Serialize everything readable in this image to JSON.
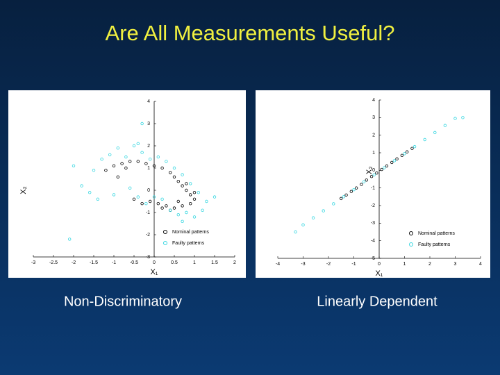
{
  "slide_title": "Are All Measurements Useful?",
  "chart_data": [
    {
      "type": "scatter",
      "caption": "Non-Discriminatory",
      "xlabel": "X₁",
      "ylabel": "X₂",
      "xlim": [
        -3,
        2
      ],
      "xticks": [
        -3,
        -2.5,
        -2,
        -1.5,
        -1,
        -0.5,
        0,
        0.5,
        1,
        1.5,
        2
      ],
      "ylim": [
        -3,
        4
      ],
      "yticks": [
        -3,
        -2,
        -1,
        0,
        1,
        2,
        3,
        4
      ],
      "legend": "lower right",
      "series": [
        {
          "name": "Nominal patterns",
          "color": "#000000",
          "x": [
            -1.2,
            -1.0,
            -0.8,
            -0.6,
            -0.4,
            -0.2,
            0.0,
            0.2,
            0.4,
            0.5,
            0.6,
            0.7,
            0.8,
            0.9,
            1.0,
            0.9,
            0.7,
            0.5,
            0.3,
            0.1,
            -0.1,
            -0.3,
            -0.5,
            0.8,
            1.0,
            0.6,
            -0.9,
            -0.7,
            0.4,
            0.2
          ],
          "values": [
            0.9,
            1.1,
            1.2,
            1.3,
            1.3,
            1.2,
            1.1,
            1.0,
            0.8,
            0.6,
            0.4,
            0.2,
            0.0,
            -0.2,
            -0.4,
            -0.6,
            -0.7,
            -0.8,
            -0.7,
            -0.6,
            -0.5,
            -0.6,
            -0.4,
            0.3,
            -0.1,
            -0.5,
            0.6,
            1.0,
            -0.9,
            -0.8
          ]
        },
        {
          "name": "Faulty patterns",
          "color": "#33d6e0",
          "x": [
            -2.0,
            -1.8,
            -1.5,
            -1.3,
            -1.1,
            -0.9,
            -0.7,
            -0.5,
            -0.3,
            -0.1,
            0.1,
            0.3,
            0.5,
            0.7,
            0.9,
            1.1,
            1.3,
            1.2,
            1.0,
            0.8,
            0.6,
            0.4,
            0.2,
            0.0,
            -0.2,
            -0.4,
            -0.6,
            -1.0,
            -1.4,
            -0.4,
            -0.3,
            -2.1,
            1.5,
            0.7,
            -1.6
          ],
          "values": [
            1.1,
            0.2,
            0.9,
            1.4,
            1.6,
            1.9,
            1.5,
            2.0,
            1.7,
            1.4,
            1.5,
            1.3,
            1.0,
            0.7,
            0.3,
            -0.1,
            -0.5,
            -0.9,
            -1.2,
            -1.0,
            -1.1,
            -0.9,
            -0.4,
            -0.3,
            -0.6,
            -0.3,
            0.1,
            -0.2,
            -0.4,
            2.1,
            3.0,
            -2.2,
            -0.3,
            -1.4,
            -0.1
          ]
        }
      ]
    },
    {
      "type": "scatter",
      "caption": "Linearly Dependent",
      "xlabel": "X₁",
      "ylabel": "X₂",
      "xlim": [
        -4,
        4
      ],
      "xticks": [
        -4,
        -3,
        -2,
        -1,
        0,
        1,
        2,
        3,
        4
      ],
      "ylim": [
        -5,
        4
      ],
      "yticks": [
        -5,
        -4,
        -3,
        -2,
        -1,
        0,
        1,
        2,
        3,
        4
      ],
      "legend": "lower right",
      "series": [
        {
          "name": "Nominal patterns",
          "color": "#000000",
          "x": [
            -1.5,
            -1.3,
            -1.1,
            -0.9,
            -0.7,
            -0.5,
            -0.3,
            -0.1,
            0.1,
            0.3,
            0.5,
            0.7,
            0.9,
            1.1,
            1.3
          ],
          "values": [
            -1.6,
            -1.4,
            -1.2,
            -1.0,
            -0.8,
            -0.55,
            -0.35,
            -0.15,
            0.05,
            0.25,
            0.45,
            0.65,
            0.85,
            1.05,
            1.25
          ]
        },
        {
          "name": "Faulty patterns",
          "color": "#33d6e0",
          "x": [
            -3.3,
            -3.0,
            -2.6,
            -2.2,
            -1.8,
            -1.4,
            -1.0,
            -0.6,
            -0.2,
            0.2,
            0.6,
            1.0,
            1.4,
            1.8,
            2.2,
            2.6,
            3.0,
            3.3
          ],
          "values": [
            -3.5,
            -3.1,
            -2.7,
            -2.3,
            -1.9,
            -1.5,
            -1.1,
            -0.65,
            -0.25,
            0.15,
            0.55,
            0.95,
            1.35,
            1.75,
            2.15,
            2.55,
            2.95,
            3.0
          ]
        }
      ]
    }
  ]
}
